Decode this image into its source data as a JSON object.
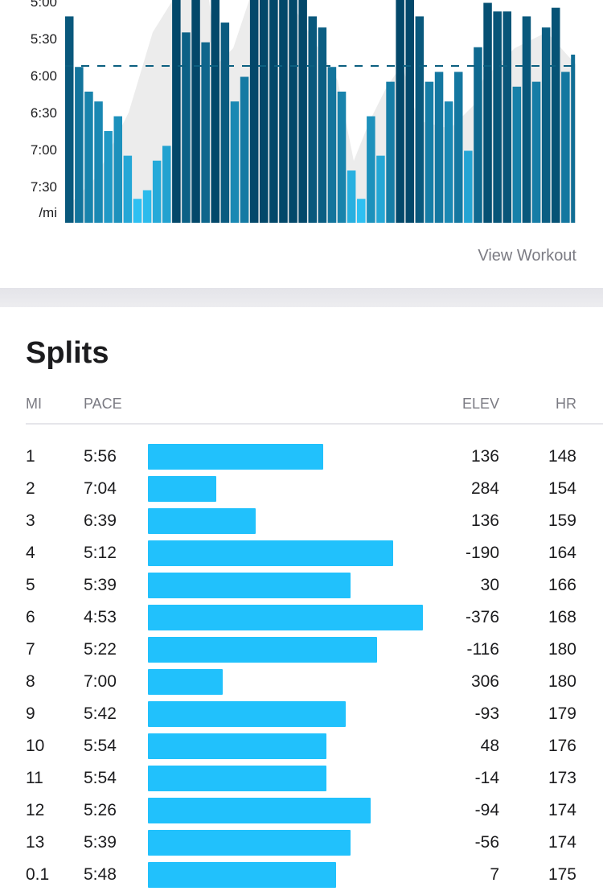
{
  "pace_chart": {
    "y_labels": [
      "5:00",
      "5:30",
      "6:00",
      "6:30",
      "7:00",
      "7:30",
      "/mi"
    ],
    "y_range_sec": [
      300,
      466
    ],
    "average_pace_sec": 352,
    "bar_paces_sec": [
      312,
      353,
      373,
      381,
      405,
      393,
      425,
      460,
      453,
      429,
      417,
      285,
      325,
      285,
      333,
      285,
      317,
      381,
      361,
      285,
      285,
      285,
      285,
      285,
      285,
      312,
      321,
      353,
      373,
      437,
      460,
      393,
      425,
      365,
      285,
      285,
      312,
      365,
      357,
      381,
      357,
      421,
      337,
      301,
      308,
      308,
      369,
      312,
      365,
      321,
      305,
      357,
      343
    ],
    "colors": {
      "fast": "#03486a",
      "slow": "#2ec0f2",
      "avg_line": "#0b5f80",
      "elevation": "#ececec"
    }
  },
  "view_workout_label": "View Workout",
  "splits": {
    "title": "Splits",
    "headers": {
      "mi": "MI",
      "pace": "PACE",
      "elev": "ELEV",
      "hr": "HR"
    },
    "bar_color": "#21c1fc",
    "rows": [
      {
        "mi": "1",
        "pace": "5:56",
        "pace_sec": 356,
        "elev": "136",
        "hr": "148"
      },
      {
        "mi": "2",
        "pace": "7:04",
        "pace_sec": 424,
        "elev": "284",
        "hr": "154"
      },
      {
        "mi": "3",
        "pace": "6:39",
        "pace_sec": 399,
        "elev": "136",
        "hr": "159"
      },
      {
        "mi": "4",
        "pace": "5:12",
        "pace_sec": 312,
        "elev": "-190",
        "hr": "164"
      },
      {
        "mi": "5",
        "pace": "5:39",
        "pace_sec": 339,
        "elev": "30",
        "hr": "166"
      },
      {
        "mi": "6",
        "pace": "4:53",
        "pace_sec": 293,
        "elev": "-376",
        "hr": "168"
      },
      {
        "mi": "7",
        "pace": "5:22",
        "pace_sec": 322,
        "elev": "-116",
        "hr": "180"
      },
      {
        "mi": "8",
        "pace": "7:00",
        "pace_sec": 420,
        "elev": "306",
        "hr": "180"
      },
      {
        "mi": "9",
        "pace": "5:42",
        "pace_sec": 342,
        "elev": "-93",
        "hr": "179"
      },
      {
        "mi": "10",
        "pace": "5:54",
        "pace_sec": 354,
        "elev": "48",
        "hr": "176"
      },
      {
        "mi": "11",
        "pace": "5:54",
        "pace_sec": 354,
        "elev": "-14",
        "hr": "173"
      },
      {
        "mi": "12",
        "pace": "5:26",
        "pace_sec": 326,
        "elev": "-94",
        "hr": "174"
      },
      {
        "mi": "13",
        "pace": "5:39",
        "pace_sec": 339,
        "elev": "-56",
        "hr": "174"
      },
      {
        "mi": "0.1",
        "pace": "5:48",
        "pace_sec": 348,
        "elev": "7",
        "hr": "175"
      }
    ]
  }
}
